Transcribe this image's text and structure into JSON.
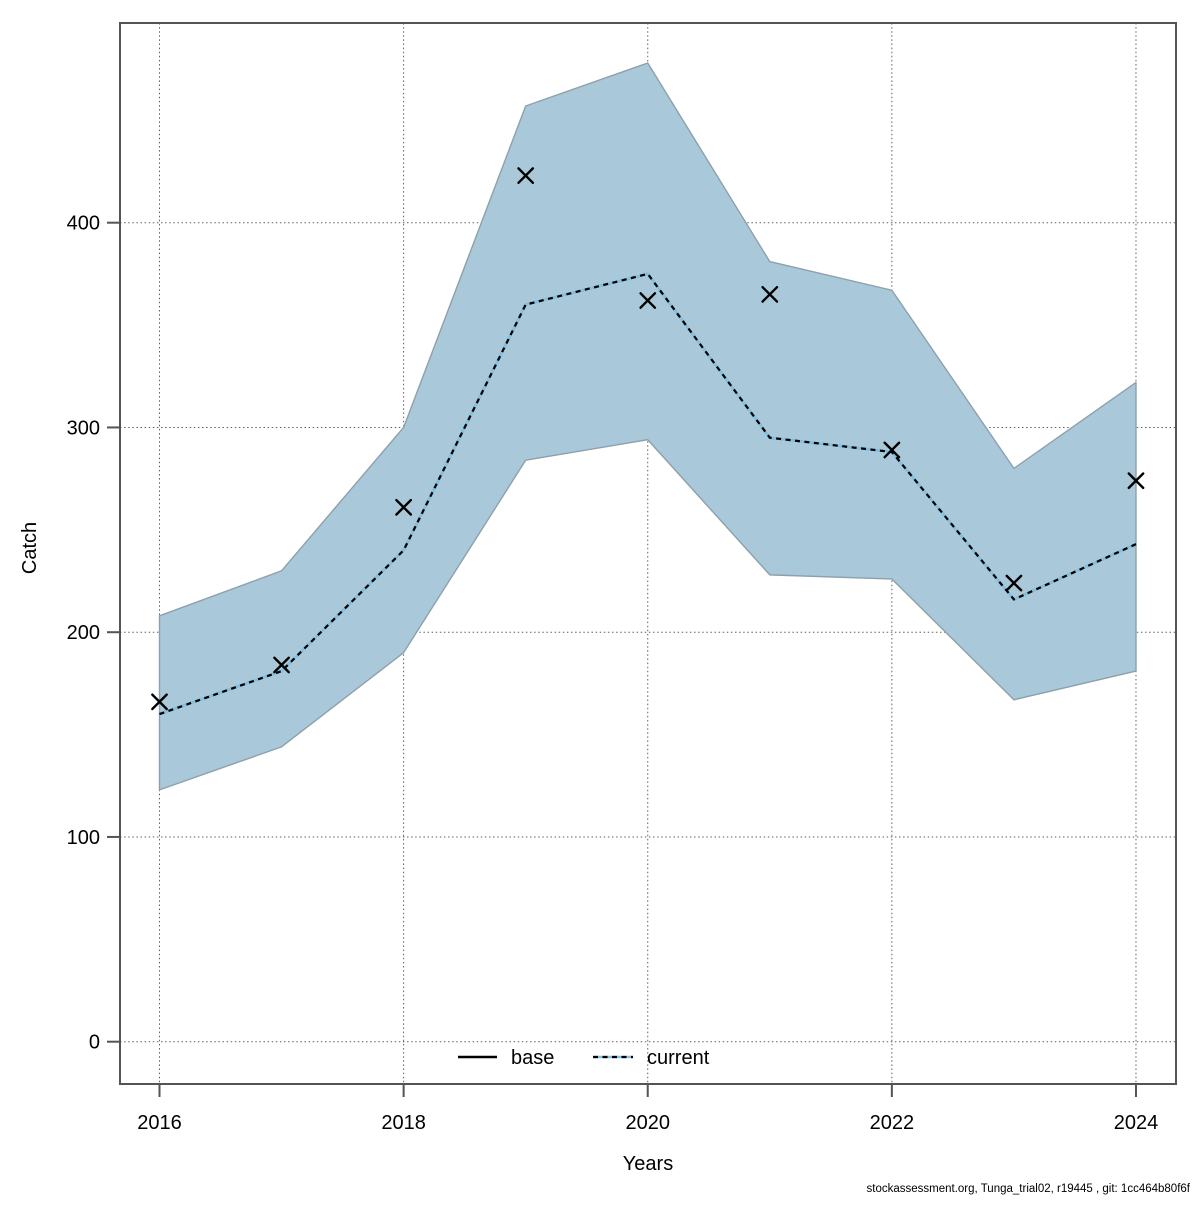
{
  "page": {
    "background": "#ffffff"
  },
  "chart_data": {
    "type": "line",
    "title": "",
    "xlabel": "Years",
    "ylabel": "Catch",
    "x": [
      2016,
      2017,
      2018,
      2019,
      2020,
      2021,
      2022,
      2023,
      2024
    ],
    "x_ticks": [
      2016,
      2018,
      2020,
      2022,
      2024
    ],
    "y_ticks": [
      0,
      100,
      200,
      300,
      400
    ],
    "xlim": [
      2015.67,
      2024.33
    ],
    "ylim": [
      -21,
      497
    ],
    "grid": "dotted",
    "legend_position": "bottom-center-inside",
    "band": {
      "name": "confidence-band",
      "fill": "#a9c8d9",
      "edge": "#8da0ac",
      "low": [
        123,
        144,
        190,
        284,
        294,
        228,
        226,
        167,
        181
      ],
      "high": [
        208,
        230,
        300,
        457,
        478,
        381,
        367,
        280,
        322
      ]
    },
    "series": [
      {
        "name": "base",
        "style": "solid",
        "color": "#000000",
        "values": [
          160,
          181,
          240,
          360,
          375,
          295,
          288,
          216,
          243
        ]
      },
      {
        "name": "current",
        "style": "dashed",
        "color": "#82c0e4",
        "dash_color": "#000000",
        "values": [
          160,
          181,
          240,
          360,
          375,
          295,
          288,
          216,
          243
        ]
      },
      {
        "name": "observed-catch",
        "style": "x-markers",
        "color": "#000000",
        "values": [
          166,
          184,
          261,
          423,
          362,
          365,
          289,
          224,
          274
        ]
      }
    ],
    "legend": [
      {
        "label": "base"
      },
      {
        "label": "current"
      }
    ]
  },
  "footer": {
    "text": "stockassessment.org, Tunga_trial02, r19445 , git: 1cc464b80f6f"
  },
  "colors": {
    "band": "#a9c8d9",
    "band_edge": "#8da0ac",
    "base_line": "#000000",
    "current_line": "#82c0e4",
    "grid": "#606060",
    "border": "#545454"
  }
}
